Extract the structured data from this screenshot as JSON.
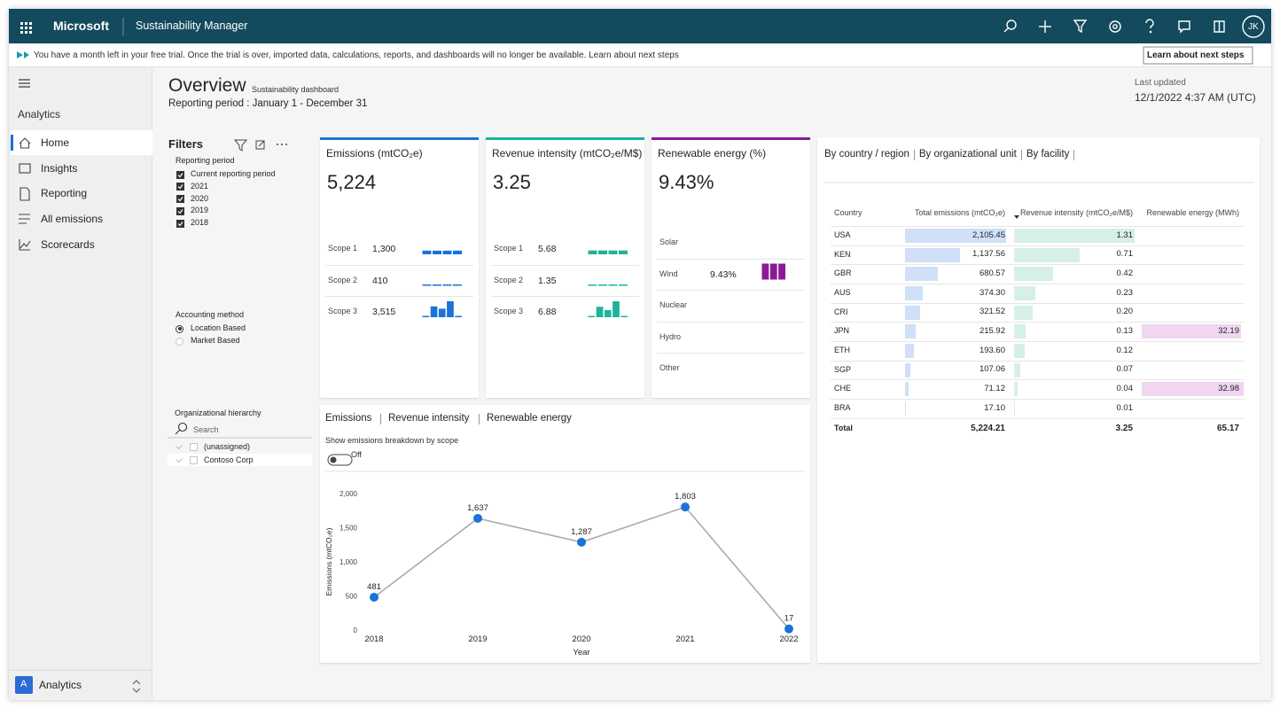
{
  "header": {
    "brand": "Microsoft",
    "app": "Sustainability Manager",
    "avatar": "JK"
  },
  "banner": {
    "text": "You have a month left in your free trial. Once the trial is over, imported data, calculations, reports, and dashboards will no longer be available. Learn about next steps",
    "button": "Learn about next steps"
  },
  "nav": {
    "section": "Analytics",
    "items": [
      "Home",
      "Insights",
      "Reporting",
      "All emissions",
      "Scorecards"
    ],
    "active": 0,
    "area_badge": "A",
    "area": "Analytics"
  },
  "overview": {
    "title": "Overview",
    "subtitle": "Sustainability dashboard",
    "period": "Reporting period : January 1 - December 31",
    "updated_label": "Last updated",
    "updated": "12/1/2022 4:37 AM (UTC)"
  },
  "filters": {
    "title": "Filters",
    "reporting_period": {
      "label": "Reporting period",
      "options": [
        "Current reporting period",
        "2021",
        "2020",
        "2019",
        "2018"
      ],
      "checked": [
        true,
        true,
        true,
        true,
        true
      ]
    },
    "accounting": {
      "label": "Accounting method",
      "options": [
        "Location Based",
        "Market Based"
      ],
      "selected": 0
    },
    "hierarchy": {
      "label": "Organizational hierarchy",
      "search": "Search",
      "items": [
        "(unassigned)",
        "Contoso Corp"
      ]
    }
  },
  "cards": [
    {
      "title": "Emissions (mtCO₂e)",
      "value": "5,224",
      "color": "#1a73d9",
      "rows": [
        {
          "label": "Scope 1",
          "value": "1,300",
          "trend": [
            325,
            325,
            325,
            325
          ]
        },
        {
          "label": "Scope 2",
          "value": "410",
          "trend": [
            103,
            102,
            103,
            102
          ]
        },
        {
          "label": "Scope 3",
          "value": "3,515",
          "trend": [
            10,
            950,
            750,
            1400,
            10
          ]
        }
      ]
    },
    {
      "title": "Revenue intensity (mtCO₂e/M$)",
      "value": "3.25",
      "color": "#1bb49b",
      "rows": [
        {
          "label": "Scope 1",
          "value": "5.68",
          "trend": [
            0.7,
            0.7,
            0.7,
            0.7
          ]
        },
        {
          "label": "Scope 2",
          "value": "1.35",
          "trend": [
            0.2,
            0.2,
            0.2,
            0.2
          ]
        },
        {
          "label": "Scope 3",
          "value": "6.88",
          "trend": [
            0.1,
            1.9,
            1.3,
            2.9,
            0.1
          ]
        }
      ]
    },
    {
      "title": "Renewable energy (%)",
      "value": "9.43%",
      "color": "#8b1a9b",
      "rows": [
        {
          "label": "Solar",
          "value": null,
          "trend": null
        },
        {
          "label": "Wind",
          "value": "9.43%",
          "trend": [
            3.1,
            3.1,
            3.1
          ]
        },
        {
          "label": "Nuclear",
          "value": null,
          "trend": null
        },
        {
          "label": "Hydro",
          "value": null,
          "trend": null
        },
        {
          "label": "Other",
          "value": null,
          "trend": null
        }
      ]
    }
  ],
  "chart_data": {
    "type": "line",
    "tabs": [
      "Emissions",
      "Revenue intensity",
      "Renewable energy"
    ],
    "toggle_label": "Show emissions breakdown by scope",
    "toggle_state": "Off",
    "categories": [
      "2018",
      "2019",
      "2020",
      "2021",
      "2022"
    ],
    "values": [
      481,
      1637,
      1287,
      1803,
      17
    ],
    "value_labels": [
      "481",
      "1,637",
      "1,287",
      "1,803",
      "17"
    ],
    "color": "#1a73d9",
    "line_color": "#aaaaaa",
    "xlabel": "Year",
    "ylabel": "Emissions (mtCO₂e)",
    "ylim": [
      0,
      2000
    ],
    "yticks": [
      0,
      500,
      {
        "value": 1000,
        "label": "1,000"
      },
      {
        "value": 1500,
        "label": "1,500"
      },
      {
        "value": 2000,
        "label": "2,000"
      }
    ],
    "grid": false
  },
  "table": {
    "tabs": [
      "By country / region",
      "By organizational unit",
      "By facility"
    ],
    "columns": [
      "Country",
      "Total emissions (mtCO₂e)",
      "Revenue intensity (mtCO₂e/M$)",
      "Renewable energy (MWh)"
    ],
    "bar_colors": [
      null,
      "#cfe0f8",
      "#d6efe8",
      "#f0d6f0"
    ],
    "rows": [
      [
        "USA",
        "2,105.45",
        "1.31",
        null
      ],
      [
        "KEN",
        "1,137.56",
        "0.71",
        null
      ],
      [
        "GBR",
        "680.57",
        "0.42",
        null
      ],
      [
        "AUS",
        "374.30",
        "0.23",
        null
      ],
      [
        "CRI",
        "321.52",
        "0.20",
        null
      ],
      [
        "JPN",
        "215.92",
        "0.13",
        "32.19"
      ],
      [
        "ETH",
        "193.60",
        "0.12",
        null
      ],
      [
        "SGP",
        "107.06",
        "0.07",
        null
      ],
      [
        "CHE",
        "71.12",
        "0.04",
        "32.98"
      ],
      [
        "BRA",
        "17.10",
        "0.01",
        null
      ]
    ],
    "total": [
      "Total",
      "5,224.21",
      "3.25",
      "65.17"
    ]
  }
}
